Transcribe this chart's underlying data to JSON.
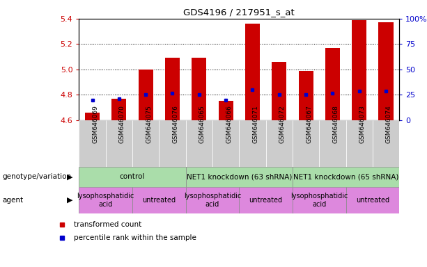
{
  "title": "GDS4196 / 217951_s_at",
  "samples": [
    "GSM646069",
    "GSM646070",
    "GSM646075",
    "GSM646076",
    "GSM646065",
    "GSM646066",
    "GSM646071",
    "GSM646072",
    "GSM646067",
    "GSM646068",
    "GSM646073",
    "GSM646074"
  ],
  "bar_values": [
    4.66,
    4.77,
    5.0,
    5.09,
    5.09,
    4.75,
    5.36,
    5.06,
    4.99,
    5.17,
    5.39,
    5.37
  ],
  "blue_values": [
    4.76,
    4.77,
    4.8,
    4.81,
    4.8,
    4.76,
    4.84,
    4.8,
    4.8,
    4.81,
    4.83,
    4.83
  ],
  "ymin": 4.6,
  "ymax": 5.4,
  "yticks": [
    4.6,
    4.8,
    5.0,
    5.2,
    5.4
  ],
  "right_yticks": [
    0,
    25,
    50,
    75,
    100
  ],
  "right_yticklabels": [
    "0",
    "25",
    "50",
    "75",
    "100%"
  ],
  "bar_color": "#cc0000",
  "blue_color": "#0000cc",
  "bar_bottom": 4.6,
  "genotype_groups": [
    {
      "label": "control",
      "start": 0,
      "end": 4,
      "color": "#aaddaa"
    },
    {
      "label": "NET1 knockdown (63 shRNA)",
      "start": 4,
      "end": 8,
      "color": "#aaddaa"
    },
    {
      "label": "NET1 knockdown (65 shRNA)",
      "start": 8,
      "end": 12,
      "color": "#aaddaa"
    }
  ],
  "agent_groups": [
    {
      "label": "lysophosphatidic\nacid",
      "start": 0,
      "end": 2,
      "color": "#dd88dd"
    },
    {
      "label": "untreated",
      "start": 2,
      "end": 4,
      "color": "#dd88dd"
    },
    {
      "label": "lysophosphatidic\nacid",
      "start": 4,
      "end": 6,
      "color": "#dd88dd"
    },
    {
      "label": "untreated",
      "start": 6,
      "end": 8,
      "color": "#dd88dd"
    },
    {
      "label": "lysophosphatidic\nacid",
      "start": 8,
      "end": 10,
      "color": "#dd88dd"
    },
    {
      "label": "untreated",
      "start": 10,
      "end": 12,
      "color": "#dd88dd"
    }
  ],
  "sample_bg_color": "#cccccc",
  "genotype_border_color": "#888888",
  "agent_border_color": "#888888"
}
